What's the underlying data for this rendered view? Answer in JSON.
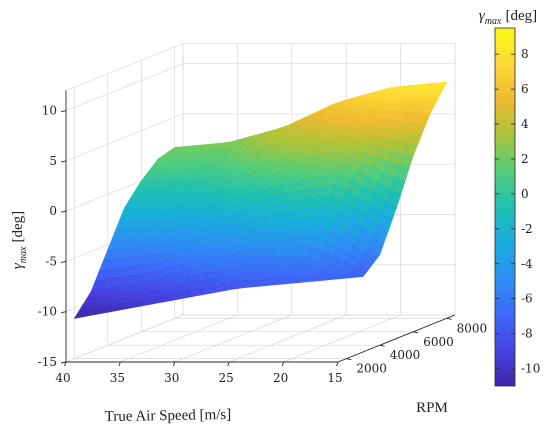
{
  "chart_data": {
    "type": "surface",
    "title": "",
    "xlabel": "True Air Speed [m/s]",
    "ylabel": "RPM",
    "zlabel": "γ_max [deg]",
    "zlabel_parts": {
      "base": "γ",
      "sub": "max",
      "unit": "[deg]"
    },
    "x_ticks": [
      40,
      35,
      30,
      25,
      20,
      15
    ],
    "y_ticks": [
      2000,
      4000,
      6000,
      8000
    ],
    "z_ticks": [
      10,
      5,
      0,
      -5,
      -10,
      -15
    ],
    "xlim": [
      15,
      40
    ],
    "ylim": [
      1500,
      8500
    ],
    "zlim": [
      -15,
      12
    ],
    "grid": true,
    "colormap": "parula",
    "colorbar": {
      "title": "γ_max [deg]",
      "title_parts": {
        "base": "γ",
        "sub": "max",
        "unit": "[deg]"
      },
      "ticks": [
        8,
        6,
        4,
        2,
        0,
        -2,
        -4,
        -6,
        -8,
        -10
      ],
      "range": [
        -11,
        9.5
      ],
      "colors": [
        "#3e26a8",
        "#4743e3",
        "#3d6af8",
        "#2d8ff3",
        "#19acdd",
        "#1fc1b1",
        "#52cd7a",
        "#a8c43b",
        "#eeba30",
        "#fcd835",
        "#f9fb15"
      ]
    },
    "surface": {
      "speeds": [
        15,
        20,
        25,
        30,
        35,
        40
      ],
      "rpms": [
        2000,
        3000,
        4000,
        5000,
        6000,
        7000,
        8000
      ],
      "gamma": [
        [
          -7.0,
          -7.5,
          -6.0,
          -2.0,
          2.5,
          6.0,
          8.5
        ],
        [
          -7.5,
          -5.5,
          -2.0,
          1.5,
          4.0,
          6.5,
          8.0
        ],
        [
          -8.0,
          -5.5,
          -3.0,
          0.5,
          3.0,
          5.0,
          6.5
        ],
        [
          -9.0,
          -6.5,
          -4.0,
          -1.0,
          1.5,
          3.5,
          4.0
        ],
        [
          -10.0,
          -8.0,
          -5.0,
          -2.5,
          -0.5,
          1.0,
          2.5
        ],
        [
          -11.0,
          -9.0,
          -5.5,
          -2.0,
          0.0,
          1.5,
          2.0
        ]
      ]
    }
  }
}
